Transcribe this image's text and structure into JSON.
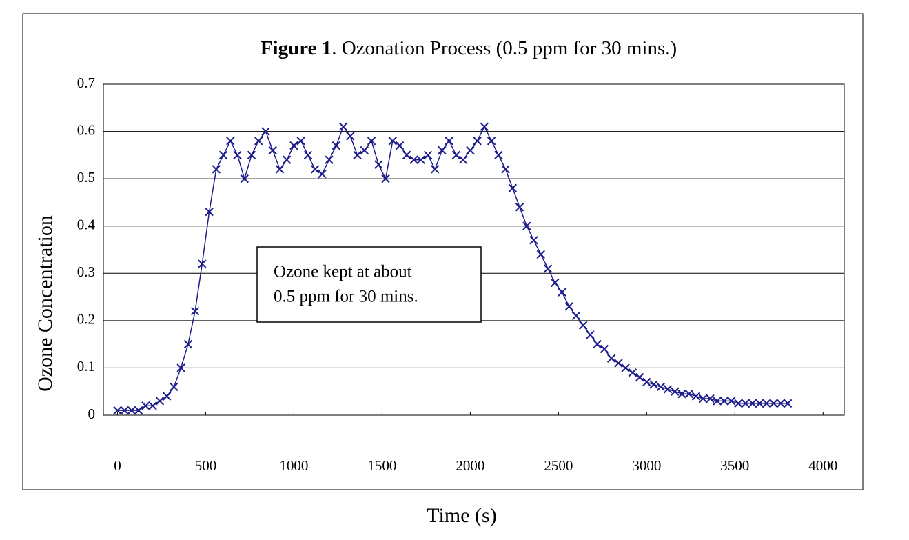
{
  "chart_data": {
    "type": "line",
    "title": [
      "Figure 1",
      ". Ozonation Process (0.5 ppm for 30 mins.)"
    ],
    "xlabel": "Time (s)",
    "ylabel": "Ozone Concentration",
    "annotation": [
      "Ozone kept at about",
      "0.5 ppm for 30 mins."
    ],
    "color": "#1c1c8a",
    "marker": "x",
    "grid": true,
    "xlim": [
      -80,
      4120
    ],
    "xticks": [
      0,
      500,
      1000,
      1500,
      2000,
      2500,
      3000,
      3500,
      4000
    ],
    "ylim": [
      0,
      0.7
    ],
    "yticks": [
      0,
      0.1,
      0.2,
      0.3,
      0.4,
      0.5,
      0.6,
      0.7
    ],
    "x": [
      0,
      40,
      80,
      120,
      160,
      200,
      240,
      280,
      320,
      360,
      400,
      440,
      480,
      520,
      560,
      600,
      640,
      680,
      720,
      760,
      800,
      840,
      880,
      920,
      960,
      1000,
      1040,
      1080,
      1120,
      1160,
      1200,
      1240,
      1280,
      1320,
      1360,
      1400,
      1440,
      1480,
      1520,
      1560,
      1600,
      1640,
      1680,
      1720,
      1760,
      1800,
      1840,
      1880,
      1920,
      1960,
      2000,
      2040,
      2080,
      2120,
      2160,
      2200,
      2240,
      2280,
      2320,
      2360,
      2400,
      2440,
      2480,
      2520,
      2560,
      2600,
      2640,
      2680,
      2720,
      2760,
      2800,
      2840,
      2880,
      2920,
      2960,
      3000,
      3040,
      3080,
      3120,
      3160,
      3200,
      3240,
      3280,
      3320,
      3360,
      3400,
      3440,
      3480,
      3520,
      3560,
      3600,
      3640,
      3680,
      3720,
      3760,
      3800
    ],
    "values": [
      0.01,
      0.01,
      0.01,
      0.01,
      0.02,
      0.02,
      0.03,
      0.04,
      0.06,
      0.1,
      0.15,
      0.22,
      0.32,
      0.43,
      0.52,
      0.55,
      0.58,
      0.55,
      0.5,
      0.55,
      0.58,
      0.6,
      0.56,
      0.52,
      0.54,
      0.57,
      0.58,
      0.55,
      0.52,
      0.51,
      0.54,
      0.57,
      0.61,
      0.59,
      0.55,
      0.56,
      0.58,
      0.53,
      0.5,
      0.58,
      0.57,
      0.55,
      0.54,
      0.54,
      0.55,
      0.52,
      0.56,
      0.58,
      0.55,
      0.54,
      0.56,
      0.58,
      0.61,
      0.58,
      0.55,
      0.52,
      0.48,
      0.44,
      0.4,
      0.37,
      0.34,
      0.31,
      0.28,
      0.26,
      0.23,
      0.21,
      0.19,
      0.17,
      0.15,
      0.14,
      0.12,
      0.11,
      0.1,
      0.09,
      0.08,
      0.07,
      0.065,
      0.06,
      0.055,
      0.05,
      0.045,
      0.045,
      0.04,
      0.035,
      0.035,
      0.03,
      0.03,
      0.03,
      0.025,
      0.025,
      0.025,
      0.025,
      0.025,
      0.025,
      0.025,
      0.025
    ]
  }
}
